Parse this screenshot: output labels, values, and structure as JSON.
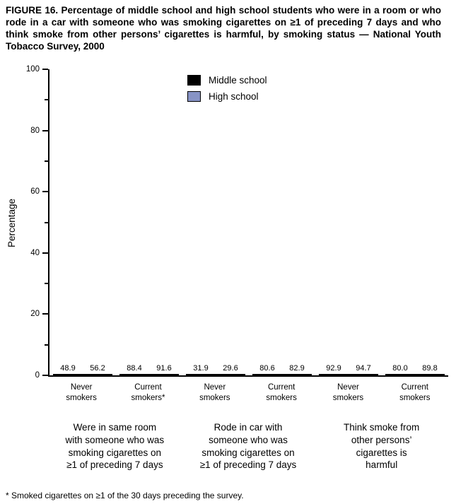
{
  "figure": {
    "title": "FIGURE 16. Percentage of middle school and high school students who were in a room or who rode in a car with someone who was smoking cigarettes on ≥1 of preceding 7 days and who think smoke from other persons’ cigarettes is harmful, by smoking status — National Youth Tobacco Survey, 2000",
    "footnote": "* Smoked cigarettes on ≥1 of the 30 days preceding the survey."
  },
  "chart_data": {
    "type": "bar",
    "title": "",
    "xlabel": "",
    "ylabel": "Percentage",
    "ylim": [
      0,
      100
    ],
    "yticks_major": [
      0,
      20,
      40,
      60,
      80,
      100
    ],
    "yticks_minor": [
      10,
      30,
      50,
      70,
      90
    ],
    "grid": false,
    "legend_position": "inside-top-center",
    "categories": [
      "Never smokers",
      "Current smokers*",
      "Never smokers",
      "Current smokers",
      "Never smokers",
      "Current smokers"
    ],
    "group_labels": [
      "Were in same room\nwith someone who was\nsmoking cigarettes on\n≥1 of preceding 7 days",
      "Rode in car with\nsomeone who was\nsmoking cigarettes on\n≥1 of preceding 7 days",
      "Think smoke from\nother persons’\ncigarettes is\nharmful"
    ],
    "series": [
      {
        "name": "Middle school",
        "color": "#000000",
        "values": [
          48.9,
          88.4,
          31.9,
          80.6,
          92.9,
          80.0
        ]
      },
      {
        "name": "High school",
        "color": "#8793C5",
        "values": [
          56.2,
          91.6,
          29.6,
          82.9,
          94.7,
          89.8
        ]
      }
    ]
  }
}
